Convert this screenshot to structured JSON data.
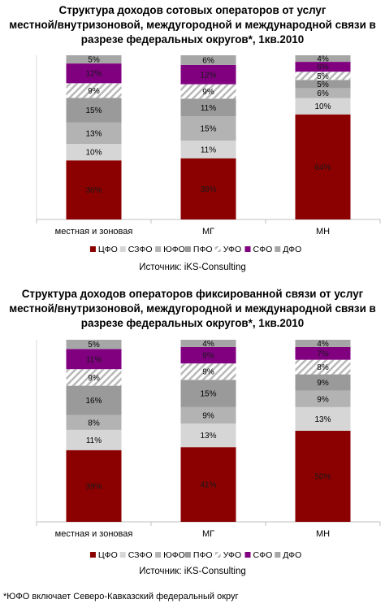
{
  "chart_data": [
    {
      "type": "bar",
      "stacked": "percent",
      "title": "Структура доходов сотовых операторов от услуг местной/внутризоновой, междугородной и международной связи в разрезе федеральных округов*, 1кв.2010",
      "title_lines": [
        "Структура доходов сотовых операторов от услуг",
        "местной/внутризоновой, междугородной и международной связи в",
        "разрезе федеральных округов*, 1кв.2010"
      ],
      "categories": [
        "местная и зоновая",
        "МГ",
        "МН"
      ],
      "series": [
        {
          "name": "ЦФО",
          "values": [
            36,
            38,
            64
          ],
          "labels": [
            "36%",
            "38%",
            "64%"
          ],
          "color": "#8b0000"
        },
        {
          "name": "СЗФО",
          "values": [
            10,
            11,
            10
          ],
          "labels": [
            "10%",
            "11%",
            "10%"
          ],
          "color": "#d6d6d6"
        },
        {
          "name": "ЮФО",
          "values": [
            13,
            15,
            6
          ],
          "labels": [
            "13%",
            "15%",
            "6%"
          ],
          "color": "#b3b3b3"
        },
        {
          "name": "ПФО",
          "values": [
            15,
            11,
            5
          ],
          "labels": [
            "15%",
            "11%",
            "5%"
          ],
          "color": "#9a9a9a"
        },
        {
          "name": "УФО",
          "values": [
            9,
            9,
            5
          ],
          "labels": [
            "9%",
            "9%",
            "5%"
          ],
          "color": "hatch"
        },
        {
          "name": "СФО",
          "values": [
            12,
            12,
            6
          ],
          "labels": [
            "12%",
            "12%",
            "6%"
          ],
          "color": "#800080"
        },
        {
          "name": "ДФО",
          "values": [
            5,
            6,
            4
          ],
          "labels": [
            "5%",
            "6%",
            "4%"
          ],
          "color": "#a6a6a6"
        }
      ],
      "legend": "bottom",
      "source": "Источник: iKS-Consulting"
    },
    {
      "type": "bar",
      "stacked": "percent",
      "title": "Структура доходов операторов фиксированной связи от услуг местной/внутризоновой, междугородной и международной связи в разрезе федеральных округов*, 1кв.2010",
      "title_lines": [
        "Структура доходов операторов фиксированной связи от услуг",
        "местной/внутризоновой, междугородной и международной связи в",
        "разрезе федеральных округов*, 1кв.2010"
      ],
      "categories": [
        "местная и зоновая",
        "МГ",
        "МН"
      ],
      "series": [
        {
          "name": "ЦФО",
          "values": [
            39,
            41,
            50
          ],
          "labels": [
            "39%",
            "41%",
            "50%"
          ],
          "color": "#8b0000"
        },
        {
          "name": "СЗФО",
          "values": [
            11,
            13,
            13
          ],
          "labels": [
            "11%",
            "13%",
            "13%"
          ],
          "color": "#d6d6d6"
        },
        {
          "name": "ЮФО",
          "values": [
            8,
            9,
            9
          ],
          "labels": [
            "8%",
            "9%",
            "9%"
          ],
          "color": "#b3b3b3"
        },
        {
          "name": "ПФО",
          "values": [
            16,
            15,
            9
          ],
          "labels": [
            "16%",
            "15%",
            "9%"
          ],
          "color": "#9a9a9a"
        },
        {
          "name": "УФО",
          "values": [
            9,
            9,
            8
          ],
          "labels": [
            "9%",
            "9%",
            "8%"
          ],
          "color": "hatch"
        },
        {
          "name": "СФО",
          "values": [
            11,
            9,
            7
          ],
          "labels": [
            "11%",
            "9%",
            "7%"
          ],
          "color": "#800080"
        },
        {
          "name": "ДФО",
          "values": [
            5,
            4,
            4
          ],
          "labels": [
            "5%",
            "4%",
            "4%"
          ],
          "color": "#a6a6a6"
        }
      ],
      "legend": "bottom",
      "source": "Источник: iKS-Consulting"
    }
  ],
  "footnote": "*ЮФО включает Северо-Кавказский федеральный округ"
}
